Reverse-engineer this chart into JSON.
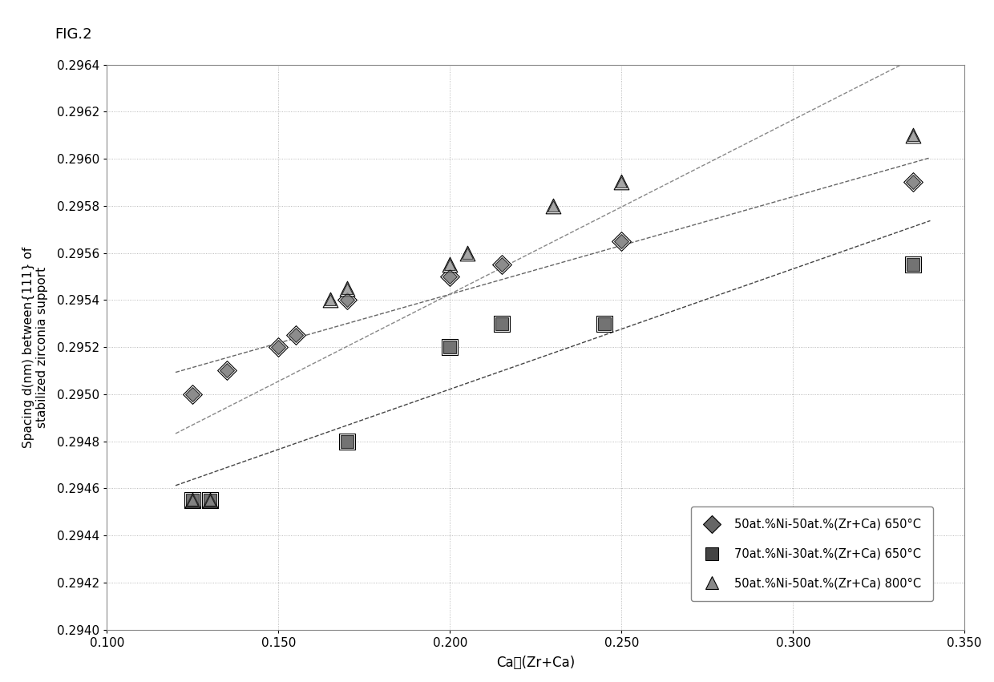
{
  "fig_label": "FIG.2",
  "series": [
    {
      "label": "50at.%Ni-50at.%(Zr+Ca) 650°C",
      "x": [
        0.125,
        0.135,
        0.15,
        0.155,
        0.17,
        0.2,
        0.215,
        0.25,
        0.335
      ],
      "y": [
        0.295,
        0.2951,
        0.2952,
        0.29525,
        0.2954,
        0.2955,
        0.29555,
        0.29565,
        0.2959
      ],
      "marker": "D",
      "color": "#666666",
      "markersize": 9
    },
    {
      "label": "70at.%Ni-30at.%(Zr+Ca) 650°C",
      "x": [
        0.125,
        0.13,
        0.17,
        0.2,
        0.215,
        0.245,
        0.335
      ],
      "y": [
        0.29455,
        0.29455,
        0.2948,
        0.2952,
        0.2953,
        0.2953,
        0.29555
      ],
      "marker": "s",
      "color": "#444444",
      "markersize": 11
    },
    {
      "label": "50at.%Ni-50at.%(Zr+Ca) 800°C",
      "x": [
        0.125,
        0.13,
        0.165,
        0.17,
        0.2,
        0.205,
        0.23,
        0.25,
        0.335
      ],
      "y": [
        0.29455,
        0.29455,
        0.2954,
        0.29545,
        0.29555,
        0.2956,
        0.2958,
        0.2959,
        0.2961
      ],
      "marker": "^",
      "color": "#888888",
      "markersize": 10
    }
  ],
  "xlabel": "Ca／(Zr+Ca)",
  "ylabel": "Spacing d(nm) between{111} of\nstabilized zirconia support",
  "xlim": [
    0.1,
    0.35
  ],
  "ylim": [
    0.294,
    0.2964
  ],
  "xticks": [
    0.1,
    0.15,
    0.2,
    0.25,
    0.3,
    0.35
  ],
  "yticks": [
    0.294,
    0.2942,
    0.2944,
    0.2946,
    0.2948,
    0.295,
    0.2952,
    0.2954,
    0.2956,
    0.2958,
    0.296,
    0.2962,
    0.2964
  ],
  "bg_color": "#ffffff",
  "fig_bg_color": "#ffffff",
  "grid_color": "#aaaaaa",
  "grid_style": ":",
  "trend_linestyle": "--",
  "trend_linewidth": 1.0
}
